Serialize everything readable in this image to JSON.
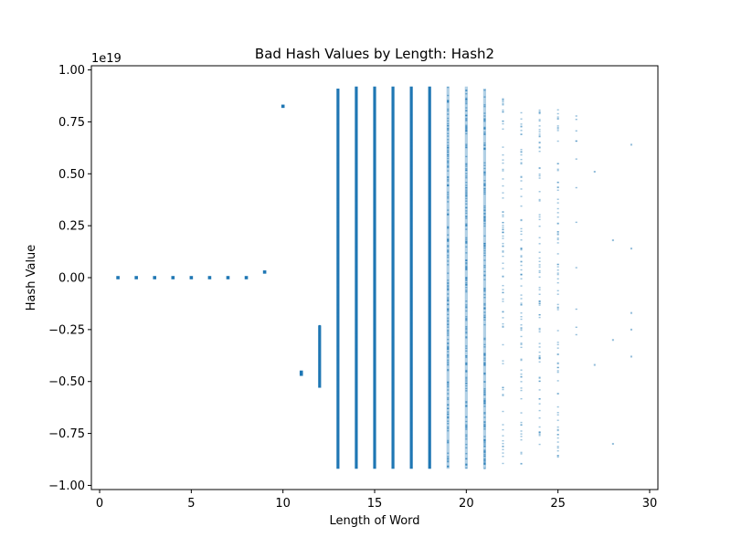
{
  "chart_data": {
    "type": "scatter",
    "title": "Bad Hash Values by Length: Hash2",
    "xlabel": "Length of Word",
    "ylabel": "Hash Value",
    "y_offset_label": "1e19",
    "xlim": [
      -0.45,
      30.45
    ],
    "ylim": [
      -1.02,
      1.02
    ],
    "x_ticks": [
      0,
      5,
      10,
      15,
      20,
      25,
      30
    ],
    "x_tick_labels": [
      "0",
      "5",
      "10",
      "15",
      "20",
      "25",
      "30"
    ],
    "y_ticks": [
      -1.0,
      -0.75,
      -0.5,
      -0.25,
      0.0,
      0.25,
      0.5,
      0.75,
      1.0
    ],
    "y_tick_labels": [
      "−1.00",
      "−0.75",
      "−0.50",
      "−0.25",
      "0.00",
      "0.25",
      "0.50",
      "0.75",
      "1.00"
    ],
    "grid": false,
    "legend": "none",
    "marker_color": "#1f77b4",
    "points": [
      {
        "x": 1,
        "y": 0.0
      },
      {
        "x": 2,
        "y": 0.0
      },
      {
        "x": 3,
        "y": 0.0
      },
      {
        "x": 4,
        "y": 0.0
      },
      {
        "x": 5,
        "y": 0.0
      },
      {
        "x": 6,
        "y": 0.0
      },
      {
        "x": 7,
        "y": 0.0
      },
      {
        "x": 8,
        "y": 0.0
      },
      {
        "x": 9,
        "y": 0.027
      },
      {
        "x": 10,
        "y": 0.825
      },
      {
        "x": 11,
        "y": -0.455
      },
      {
        "x": 11,
        "y": -0.465
      }
    ],
    "bands": [
      {
        "x": 12,
        "y_min": -0.53,
        "y_max": -0.23,
        "density": "dense"
      },
      {
        "x": 13,
        "y_min": -0.92,
        "y_max": 0.91,
        "density": "dense"
      },
      {
        "x": 14,
        "y_min": -0.92,
        "y_max": 0.92,
        "density": "dense"
      },
      {
        "x": 15,
        "y_min": -0.92,
        "y_max": 0.92,
        "density": "dense"
      },
      {
        "x": 16,
        "y_min": -0.92,
        "y_max": 0.92,
        "density": "dense"
      },
      {
        "x": 17,
        "y_min": -0.92,
        "y_max": 0.92,
        "density": "dense"
      },
      {
        "x": 18,
        "y_min": -0.92,
        "y_max": 0.92,
        "density": "dense"
      },
      {
        "x": 19,
        "y_min": -0.92,
        "y_max": 0.92,
        "density": "medium"
      },
      {
        "x": 20,
        "y_min": -0.92,
        "y_max": 0.92,
        "density": "medium"
      },
      {
        "x": 21,
        "y_min": -0.92,
        "y_max": 0.91,
        "density": "medium"
      },
      {
        "x": 22,
        "y_min": -0.91,
        "y_max": 0.91,
        "density": "sparse"
      },
      {
        "x": 23,
        "y_min": -0.9,
        "y_max": 0.86,
        "density": "sparse"
      },
      {
        "x": 24,
        "y_min": -0.89,
        "y_max": 0.86,
        "density": "sparse"
      },
      {
        "x": 25,
        "y_min": -0.87,
        "y_max": 0.86,
        "density": "sparse"
      },
      {
        "x": 26,
        "y_min": -0.5,
        "y_max": 0.89,
        "density": "very-sparse"
      }
    ],
    "sparse_points": [
      {
        "x": 27,
        "y": 0.51
      },
      {
        "x": 27,
        "y": -0.42
      },
      {
        "x": 28,
        "y": 0.18
      },
      {
        "x": 28,
        "y": -0.3
      },
      {
        "x": 28,
        "y": -0.8
      },
      {
        "x": 29,
        "y": 0.64
      },
      {
        "x": 29,
        "y": 0.14
      },
      {
        "x": 29,
        "y": -0.17
      },
      {
        "x": 29,
        "y": -0.25
      },
      {
        "x": 29,
        "y": -0.38
      }
    ]
  }
}
